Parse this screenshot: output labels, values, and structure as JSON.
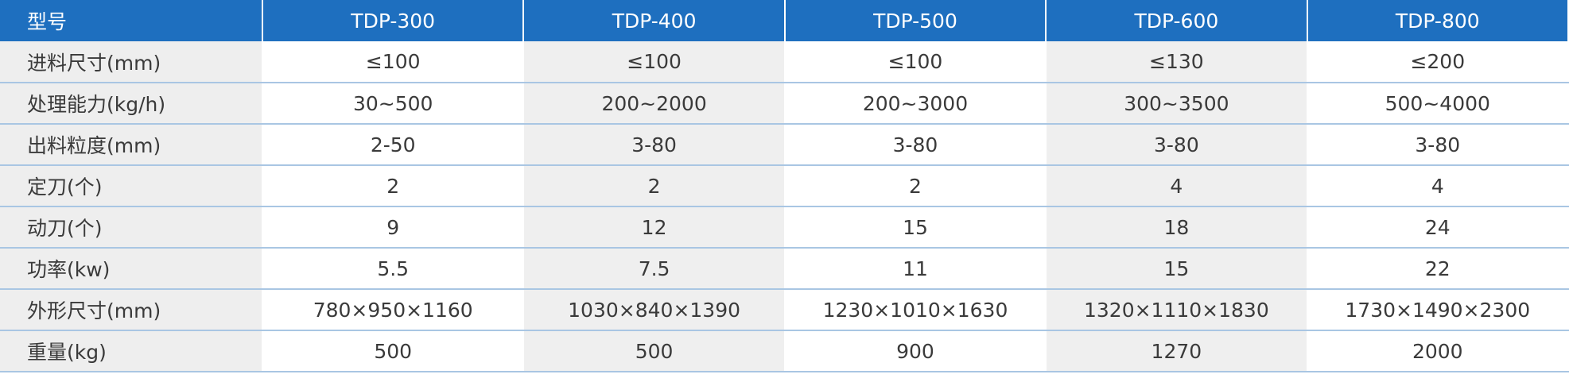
{
  "table": {
    "header": [
      "型号",
      "TDP-300",
      "TDP-400",
      "TDP-500",
      "TDP-600",
      "TDP-800"
    ],
    "rows": [
      [
        "进料尺寸(mm)",
        "≤100",
        "≤100",
        "≤100",
        "≤130",
        "≤200"
      ],
      [
        "处理能力(kg/h)",
        "30~500",
        "200~2000",
        "200~3000",
        "300~3500",
        "500~4000"
      ],
      [
        "出料粒度(mm)",
        "2-50",
        "3-80",
        "3-80",
        "3-80",
        "3-80"
      ],
      [
        "定刀(个)",
        "2",
        "2",
        "2",
        "4",
        "4"
      ],
      [
        "动刀(个)",
        "9",
        "12",
        "15",
        "18",
        "24"
      ],
      [
        "功率(kw)",
        "5.5",
        "7.5",
        "11",
        "15",
        "22"
      ],
      [
        "外形尺寸(mm)",
        "780×950×1160",
        "1030×840×1390",
        "1230×1010×1630",
        "1320×1110×1830",
        "1730×1490×2300"
      ],
      [
        "重量(kg)",
        "500",
        "500",
        "900",
        "1270",
        "2000"
      ]
    ]
  }
}
